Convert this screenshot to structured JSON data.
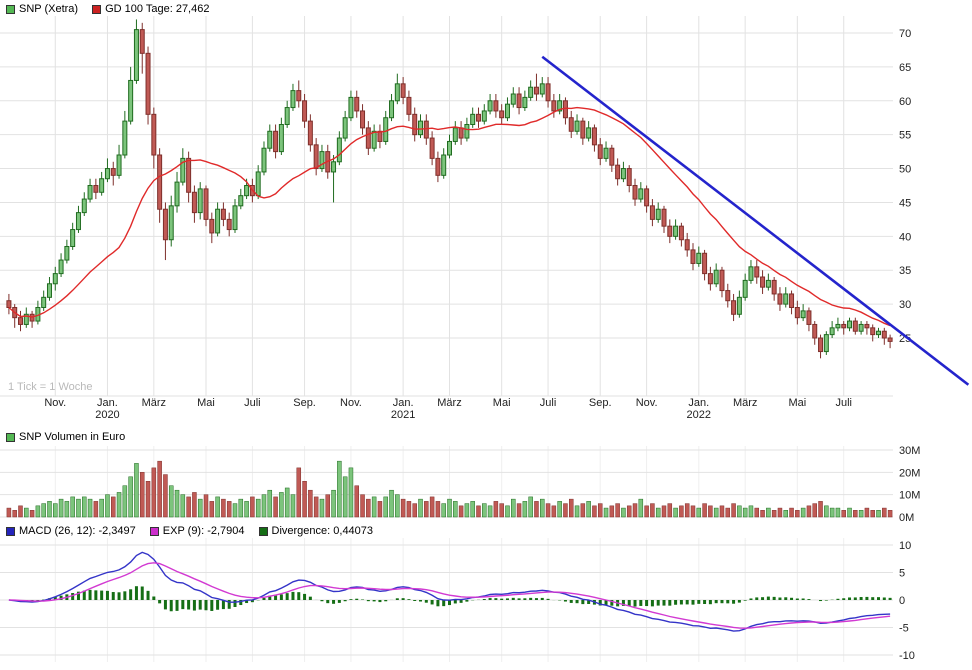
{
  "meta": {
    "tick_note": "1 Tick = 1 Woche"
  },
  "legends": {
    "price": [
      {
        "label": "SNP (Xetra)"
      },
      {
        "label": "GD 100 Tage: 27,462"
      }
    ],
    "volume": [
      {
        "label": "SNP Volumen in Euro"
      }
    ],
    "macd": [
      {
        "label": "MACD (26, 12): -2,3497"
      },
      {
        "label": "EXP (9): -2,7904"
      },
      {
        "label": "Divergence: 0,44073"
      }
    ]
  },
  "style": {
    "up_fill": "#7cc47c",
    "up_border": "#1f6b1f",
    "down_fill": "#c05a55",
    "down_border": "#7e2f2b",
    "ma": "#e02a2a",
    "trend": "#2424cc",
    "macd": "#3434c8",
    "exp": "#d23ad2",
    "div": "#156e15",
    "grid": "#e2e2e2",
    "grid_light": "#efefef",
    "axis_text": "#222222",
    "muted_text": "#b9b9b9",
    "legend_green": "#54b854",
    "legend_red": "#cc2222",
    "legend_blue": "#2424bb",
    "legend_magenta": "#cc2ecc",
    "legend_darkgreen": "#156e15"
  },
  "chart_data": {
    "type": "candlestick+volume+macd",
    "frequency": "weekly",
    "x_axis": {
      "tick_weeks": [
        8,
        17,
        25,
        34,
        42,
        51,
        59,
        68,
        76,
        85,
        93,
        102,
        110,
        119,
        127,
        136,
        144
      ],
      "tick_labels": [
        "Nov.",
        "Jan.",
        "März",
        "Mai",
        "Juli",
        "Sep.",
        "Nov.",
        "Jan.",
        "März",
        "Mai",
        "Juli",
        "Sep.",
        "Nov.",
        "Jan.",
        "März",
        "Mai",
        "Juli"
      ],
      "year_labels": [
        {
          "tick_index": 1,
          "label": "2020"
        },
        {
          "tick_index": 7,
          "label": "2021"
        },
        {
          "tick_index": 13,
          "label": "2022"
        }
      ]
    },
    "price_panel": {
      "yticks": [
        25,
        30,
        35,
        40,
        45,
        50,
        55,
        60,
        65,
        70
      ],
      "ma_period_weeks": 20,
      "gd100_last_value": "27,462",
      "trendline": {
        "start": {
          "week": 92,
          "price": 66.5
        },
        "end": {
          "week": 165.5,
          "price": 18.1
        }
      },
      "candles": [
        [
          30.5,
          31.5,
          28.5,
          29.5
        ],
        [
          29.5,
          30,
          26.5,
          28
        ],
        [
          28,
          29,
          26,
          27
        ],
        [
          27,
          29.5,
          26.5,
          28.5
        ],
        [
          28.5,
          29,
          26.5,
          27.5
        ],
        [
          27.5,
          30.5,
          27,
          29.5
        ],
        [
          29.5,
          32,
          29,
          31
        ],
        [
          31,
          34,
          30.5,
          33
        ],
        [
          33,
          35.5,
          32,
          34.5
        ],
        [
          34.5,
          37.5,
          34,
          36.5
        ],
        [
          36.5,
          39.5,
          36,
          38.5
        ],
        [
          38.5,
          42,
          38,
          41
        ],
        [
          41,
          44.5,
          40.5,
          43.5
        ],
        [
          43.5,
          46.5,
          43,
          45.5
        ],
        [
          45.5,
          48.5,
          45,
          47.5
        ],
        [
          47.5,
          48.5,
          45.5,
          46.5
        ],
        [
          46.5,
          49.5,
          46,
          48.5
        ],
        [
          48.5,
          51.5,
          48,
          50
        ],
        [
          50,
          51,
          47.5,
          49
        ],
        [
          49,
          53.5,
          48.5,
          52
        ],
        [
          52,
          58.5,
          51.5,
          57
        ],
        [
          57,
          65,
          56.5,
          63
        ],
        [
          63,
          72,
          62.5,
          70.5
        ],
        [
          70.5,
          71.5,
          64,
          67
        ],
        [
          67,
          68,
          56.5,
          58
        ],
        [
          58,
          59,
          50,
          52
        ],
        [
          52,
          53,
          42,
          44
        ],
        [
          44,
          45,
          36.5,
          39.5
        ],
        [
          39.5,
          46,
          38.5,
          44.5
        ],
        [
          44.5,
          49.5,
          43.5,
          48
        ],
        [
          48,
          53,
          47.5,
          51.5
        ],
        [
          51.5,
          52.5,
          45,
          46.5
        ],
        [
          46.5,
          47.5,
          42,
          43.5
        ],
        [
          43.5,
          48,
          42.5,
          47
        ],
        [
          47,
          47.5,
          41.5,
          42.5
        ],
        [
          42.5,
          43.5,
          39,
          40.5
        ],
        [
          40.5,
          45,
          40,
          44
        ],
        [
          44,
          45,
          41.5,
          42.5
        ],
        [
          42.5,
          43.5,
          40,
          41
        ],
        [
          41,
          45.5,
          40.5,
          44.5
        ],
        [
          44.5,
          47,
          44,
          46
        ],
        [
          46,
          48.5,
          45.5,
          47.5
        ],
        [
          47.5,
          48.5,
          45,
          46
        ],
        [
          46,
          50.5,
          45.5,
          49.5
        ],
        [
          49.5,
          54,
          49,
          53
        ],
        [
          53,
          56.5,
          52.5,
          55.5
        ],
        [
          55.5,
          56.5,
          51.5,
          52.5
        ],
        [
          52.5,
          57.5,
          52,
          56.5
        ],
        [
          56.5,
          60,
          56,
          59
        ],
        [
          59,
          62.5,
          58.5,
          61.5
        ],
        [
          61.5,
          63,
          59,
          60
        ],
        [
          60,
          61,
          56,
          57
        ],
        [
          57,
          58,
          52.5,
          53.5
        ],
        [
          53.5,
          54.5,
          49,
          50
        ],
        [
          50,
          53.5,
          49.5,
          52.5
        ],
        [
          52.5,
          53.5,
          48.5,
          49.5
        ],
        [
          49.5,
          52,
          45,
          51
        ],
        [
          51,
          55.5,
          50.5,
          54.5
        ],
        [
          54.5,
          58.5,
          54,
          57.5
        ],
        [
          57.5,
          61.5,
          57,
          60.5
        ],
        [
          60.5,
          61.5,
          57.5,
          58.5
        ],
        [
          58.5,
          59.5,
          55,
          56
        ],
        [
          56,
          57,
          52,
          53
        ],
        [
          53,
          56.5,
          52.5,
          55.5
        ],
        [
          55.5,
          56.5,
          53,
          54
        ],
        [
          54,
          58.5,
          53.5,
          57.5
        ],
        [
          57.5,
          61,
          57,
          60
        ],
        [
          60,
          64,
          59.5,
          62.5
        ],
        [
          62.5,
          63.5,
          59.5,
          60.5
        ],
        [
          60.5,
          61.5,
          57,
          58
        ],
        [
          58,
          59,
          54,
          55
        ],
        [
          55,
          58,
          54.5,
          57
        ],
        [
          57,
          58,
          53.5,
          54.5
        ],
        [
          54.5,
          55.5,
          50.5,
          51.5
        ],
        [
          51.5,
          52.5,
          48,
          49
        ],
        [
          49,
          53,
          48.5,
          52
        ],
        [
          52,
          55,
          51.5,
          54
        ],
        [
          54,
          57,
          53.5,
          56
        ],
        [
          56,
          57,
          53.5,
          54.5
        ],
        [
          54.5,
          57.5,
          54,
          56.5
        ],
        [
          56.5,
          59,
          56,
          58
        ],
        [
          58,
          59,
          56,
          57
        ],
        [
          57,
          59.5,
          56.5,
          58.5
        ],
        [
          58.5,
          61,
          58,
          60
        ],
        [
          60,
          61,
          57.5,
          58.5
        ],
        [
          58.5,
          59.5,
          56.5,
          57.5
        ],
        [
          57.5,
          60.5,
          57,
          59.5
        ],
        [
          59.5,
          62,
          59,
          61
        ],
        [
          61,
          62,
          58,
          59
        ],
        [
          59,
          61.5,
          58.5,
          60.5
        ],
        [
          60.5,
          63,
          60,
          62
        ],
        [
          62,
          64,
          60,
          61
        ],
        [
          61,
          63.5,
          60.5,
          62.5
        ],
        [
          62.5,
          63.5,
          59,
          60
        ],
        [
          60,
          61,
          57.5,
          58.5
        ],
        [
          58.5,
          61,
          58,
          60
        ],
        [
          60,
          60.5,
          56.5,
          57.5
        ],
        [
          57.5,
          58.5,
          54.5,
          55.5
        ],
        [
          55.5,
          58,
          55,
          57
        ],
        [
          57,
          57.5,
          53.5,
          54.5
        ],
        [
          54.5,
          57,
          54,
          56
        ],
        [
          56,
          56.5,
          52.5,
          53.5
        ],
        [
          53.5,
          54.5,
          50.5,
          51.5
        ],
        [
          51.5,
          54,
          51,
          53
        ],
        [
          53,
          53.5,
          49.5,
          50.5
        ],
        [
          50.5,
          51.5,
          47.5,
          48.5
        ],
        [
          48.5,
          51,
          48,
          50
        ],
        [
          50,
          50.5,
          46.5,
          47.5
        ],
        [
          47.5,
          48.5,
          44.5,
          45.5
        ],
        [
          45.5,
          48,
          45,
          47
        ],
        [
          47,
          47.5,
          43.5,
          44.5
        ],
        [
          44.5,
          45.5,
          41.5,
          42.5
        ],
        [
          42.5,
          45,
          42,
          44
        ],
        [
          44,
          44.5,
          40.5,
          41.5
        ],
        [
          41.5,
          42.5,
          39,
          40
        ],
        [
          40,
          42.5,
          39.5,
          41.5
        ],
        [
          41.5,
          42,
          38.5,
          39.5
        ],
        [
          39.5,
          40.5,
          37,
          38
        ],
        [
          38,
          39,
          35,
          36
        ],
        [
          36,
          38.5,
          35.5,
          37.5
        ],
        [
          37.5,
          38,
          33.5,
          34.5
        ],
        [
          34.5,
          35.5,
          32,
          33
        ],
        [
          33,
          36,
          32.5,
          35
        ],
        [
          35,
          35.5,
          31,
          32
        ],
        [
          32,
          33,
          29.5,
          30.5
        ],
        [
          30.5,
          31.5,
          27.5,
          28.5
        ],
        [
          28.5,
          32,
          28,
          31
        ],
        [
          31,
          34.5,
          30.5,
          33.5
        ],
        [
          33.5,
          36.5,
          33,
          35.5
        ],
        [
          35.5,
          36.5,
          33,
          34
        ],
        [
          34,
          35,
          31.5,
          32.5
        ],
        [
          32.5,
          34.5,
          32,
          33.5
        ],
        [
          33.5,
          34,
          30.5,
          31.5
        ],
        [
          31.5,
          32.5,
          29,
          30
        ],
        [
          30,
          32.5,
          29.5,
          31.5
        ],
        [
          31.5,
          32,
          28.5,
          29.5
        ],
        [
          29.5,
          30.5,
          27,
          28
        ],
        [
          28,
          30,
          27.5,
          29
        ],
        [
          29,
          29.5,
          26,
          27
        ],
        [
          27,
          27.5,
          24,
          25
        ],
        [
          25,
          25.5,
          22,
          23
        ],
        [
          23,
          26,
          22.5,
          25.5
        ],
        [
          25.5,
          27.5,
          25,
          26.5
        ],
        [
          26.5,
          28,
          26,
          27
        ],
        [
          27,
          27.5,
          25.5,
          26.5
        ],
        [
          26.5,
          28,
          26,
          27.5
        ],
        [
          27.5,
          28,
          25.5,
          26
        ],
        [
          26,
          27.5,
          25.5,
          27
        ],
        [
          27,
          27.5,
          25.5,
          26.5
        ],
        [
          26.5,
          27,
          24.5,
          25.5
        ],
        [
          25.5,
          26.5,
          25,
          26
        ],
        [
          26,
          26.5,
          24,
          25
        ],
        [
          25,
          25.5,
          23.5,
          24.5
        ]
      ]
    },
    "volume_panel": {
      "unit": "Mio EUR",
      "yticks": [
        {
          "v": 0,
          "label": "0M"
        },
        {
          "v": 10,
          "label": "10M"
        },
        {
          "v": 20,
          "label": "20M"
        },
        {
          "v": 30,
          "label": "30M"
        }
      ],
      "values_mio": [
        4,
        3,
        5,
        4,
        3,
        5,
        6,
        7,
        6,
        8,
        7,
        9,
        8,
        9,
        8,
        7,
        8,
        10,
        9,
        11,
        14,
        18,
        24,
        20,
        16,
        22,
        25,
        19,
        14,
        12,
        10,
        9,
        11,
        8,
        10,
        7,
        9,
        8,
        7,
        6,
        8,
        7,
        9,
        8,
        10,
        12,
        9,
        11,
        13,
        10,
        22,
        16,
        12,
        9,
        8,
        10,
        12,
        25,
        18,
        22,
        14,
        10,
        8,
        9,
        7,
        9,
        12,
        10,
        8,
        7,
        6,
        8,
        7,
        9,
        7,
        6,
        8,
        7,
        5,
        6,
        7,
        5,
        6,
        5,
        7,
        6,
        5,
        8,
        6,
        7,
        9,
        7,
        8,
        6,
        5,
        7,
        6,
        8,
        5,
        6,
        7,
        5,
        6,
        4,
        5,
        6,
        4,
        5,
        6,
        8,
        5,
        6,
        4,
        5,
        6,
        4,
        5,
        6,
        5,
        4,
        6,
        5,
        4,
        5,
        4,
        6,
        5,
        4,
        5,
        4,
        3,
        4,
        3,
        4,
        3,
        4,
        3,
        4,
        5,
        6,
        7,
        5,
        4,
        4,
        3,
        4,
        3,
        3,
        4,
        3,
        3,
        4,
        3
      ]
    },
    "macd_panel": {
      "yticks": [
        -10,
        -5,
        0,
        5,
        10
      ],
      "fast_period": 12,
      "slow_period": 26,
      "signal_period": 9,
      "last_values": {
        "macd": "-2,3497",
        "exp": "-2,7904",
        "divergence": "0,44073"
      }
    }
  }
}
